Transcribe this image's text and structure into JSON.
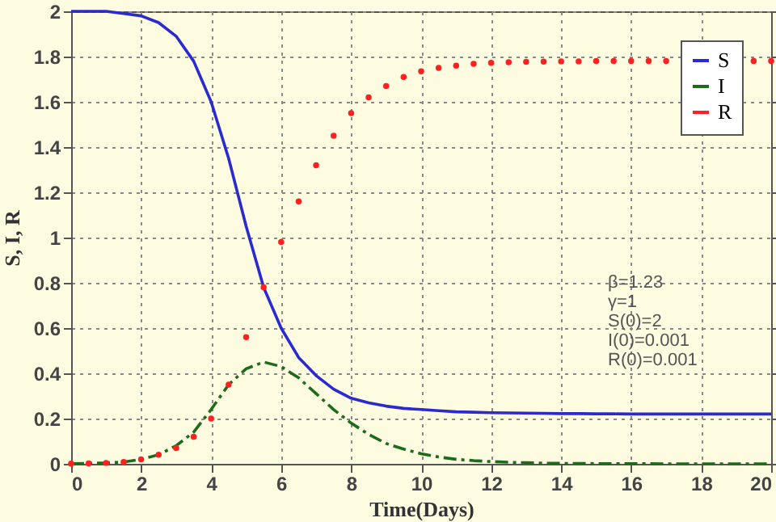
{
  "chart_data": {
    "type": "line",
    "xlabel": "Time(Days)",
    "ylabel": "S, I, R",
    "x": [
      0,
      0.5,
      1,
      1.5,
      2,
      2.5,
      3,
      3.5,
      4,
      4.5,
      5,
      5.5,
      6,
      6.5,
      7,
      7.5,
      8,
      8.5,
      9,
      9.5,
      10,
      10.5,
      11,
      11.5,
      12,
      12.5,
      13,
      13.5,
      14,
      14.5,
      15,
      15.5,
      16,
      16.5,
      17,
      17.5,
      18,
      18.5,
      19,
      19.5,
      20
    ],
    "series": [
      {
        "name": "S",
        "type": "line",
        "color": "#2a2ad0",
        "line_style": "solid",
        "marker": "none",
        "values": [
          2,
          2,
          2,
          1.99,
          1.98,
          1.95,
          1.89,
          1.78,
          1.6,
          1.35,
          1.05,
          0.78,
          0.6,
          0.47,
          0.39,
          0.33,
          0.29,
          0.27,
          0.255,
          0.245,
          0.24,
          0.235,
          0.23,
          0.228,
          0.226,
          0.225,
          0.224,
          0.223,
          0.222,
          0.222,
          0.221,
          0.221,
          0.22,
          0.22,
          0.22,
          0.22,
          0.22,
          0.22,
          0.22,
          0.22,
          0.22
        ]
      },
      {
        "name": "I",
        "type": "line",
        "color": "#1e6b1e",
        "line_style": "dashed",
        "marker": "none",
        "values": [
          0.001,
          0.002,
          0.004,
          0.008,
          0.02,
          0.04,
          0.08,
          0.14,
          0.24,
          0.35,
          0.42,
          0.45,
          0.43,
          0.38,
          0.31,
          0.24,
          0.18,
          0.13,
          0.09,
          0.065,
          0.045,
          0.03,
          0.02,
          0.014,
          0.01,
          0.007,
          0.005,
          0.003,
          0.002,
          0.002,
          0.001,
          0.001,
          0.001,
          0.001,
          0,
          0,
          0,
          0,
          0,
          0,
          0
        ]
      },
      {
        "name": "R",
        "type": "scatter",
        "color": "#ff2020",
        "marker": "circle",
        "values": [
          0.001,
          0.002,
          0.004,
          0.008,
          0.02,
          0.04,
          0.07,
          0.12,
          0.2,
          0.35,
          0.56,
          0.78,
          0.98,
          1.16,
          1.32,
          1.45,
          1.55,
          1.62,
          1.67,
          1.71,
          1.735,
          1.75,
          1.76,
          1.768,
          1.772,
          1.775,
          1.777,
          1.778,
          1.779,
          1.779,
          1.78,
          1.78,
          1.78,
          1.78,
          1.78,
          null,
          null,
          null,
          null,
          1.78,
          1.78
        ]
      }
    ],
    "xlim": [
      0,
      20
    ],
    "xticks": [
      0,
      2,
      4,
      6,
      8,
      10,
      12,
      14,
      16,
      18,
      20
    ],
    "ylim": [
      0,
      2
    ],
    "yticks": [
      0,
      0.2,
      0.4,
      0.6,
      0.8,
      1,
      1.2,
      1.4,
      1.6,
      1.8,
      2
    ],
    "grid": true,
    "legend": "top right",
    "annotations": [
      "β=1.23",
      "γ=1",
      "S(0)=2",
      "I(0)=0.001",
      "R(0)=0.001"
    ]
  }
}
